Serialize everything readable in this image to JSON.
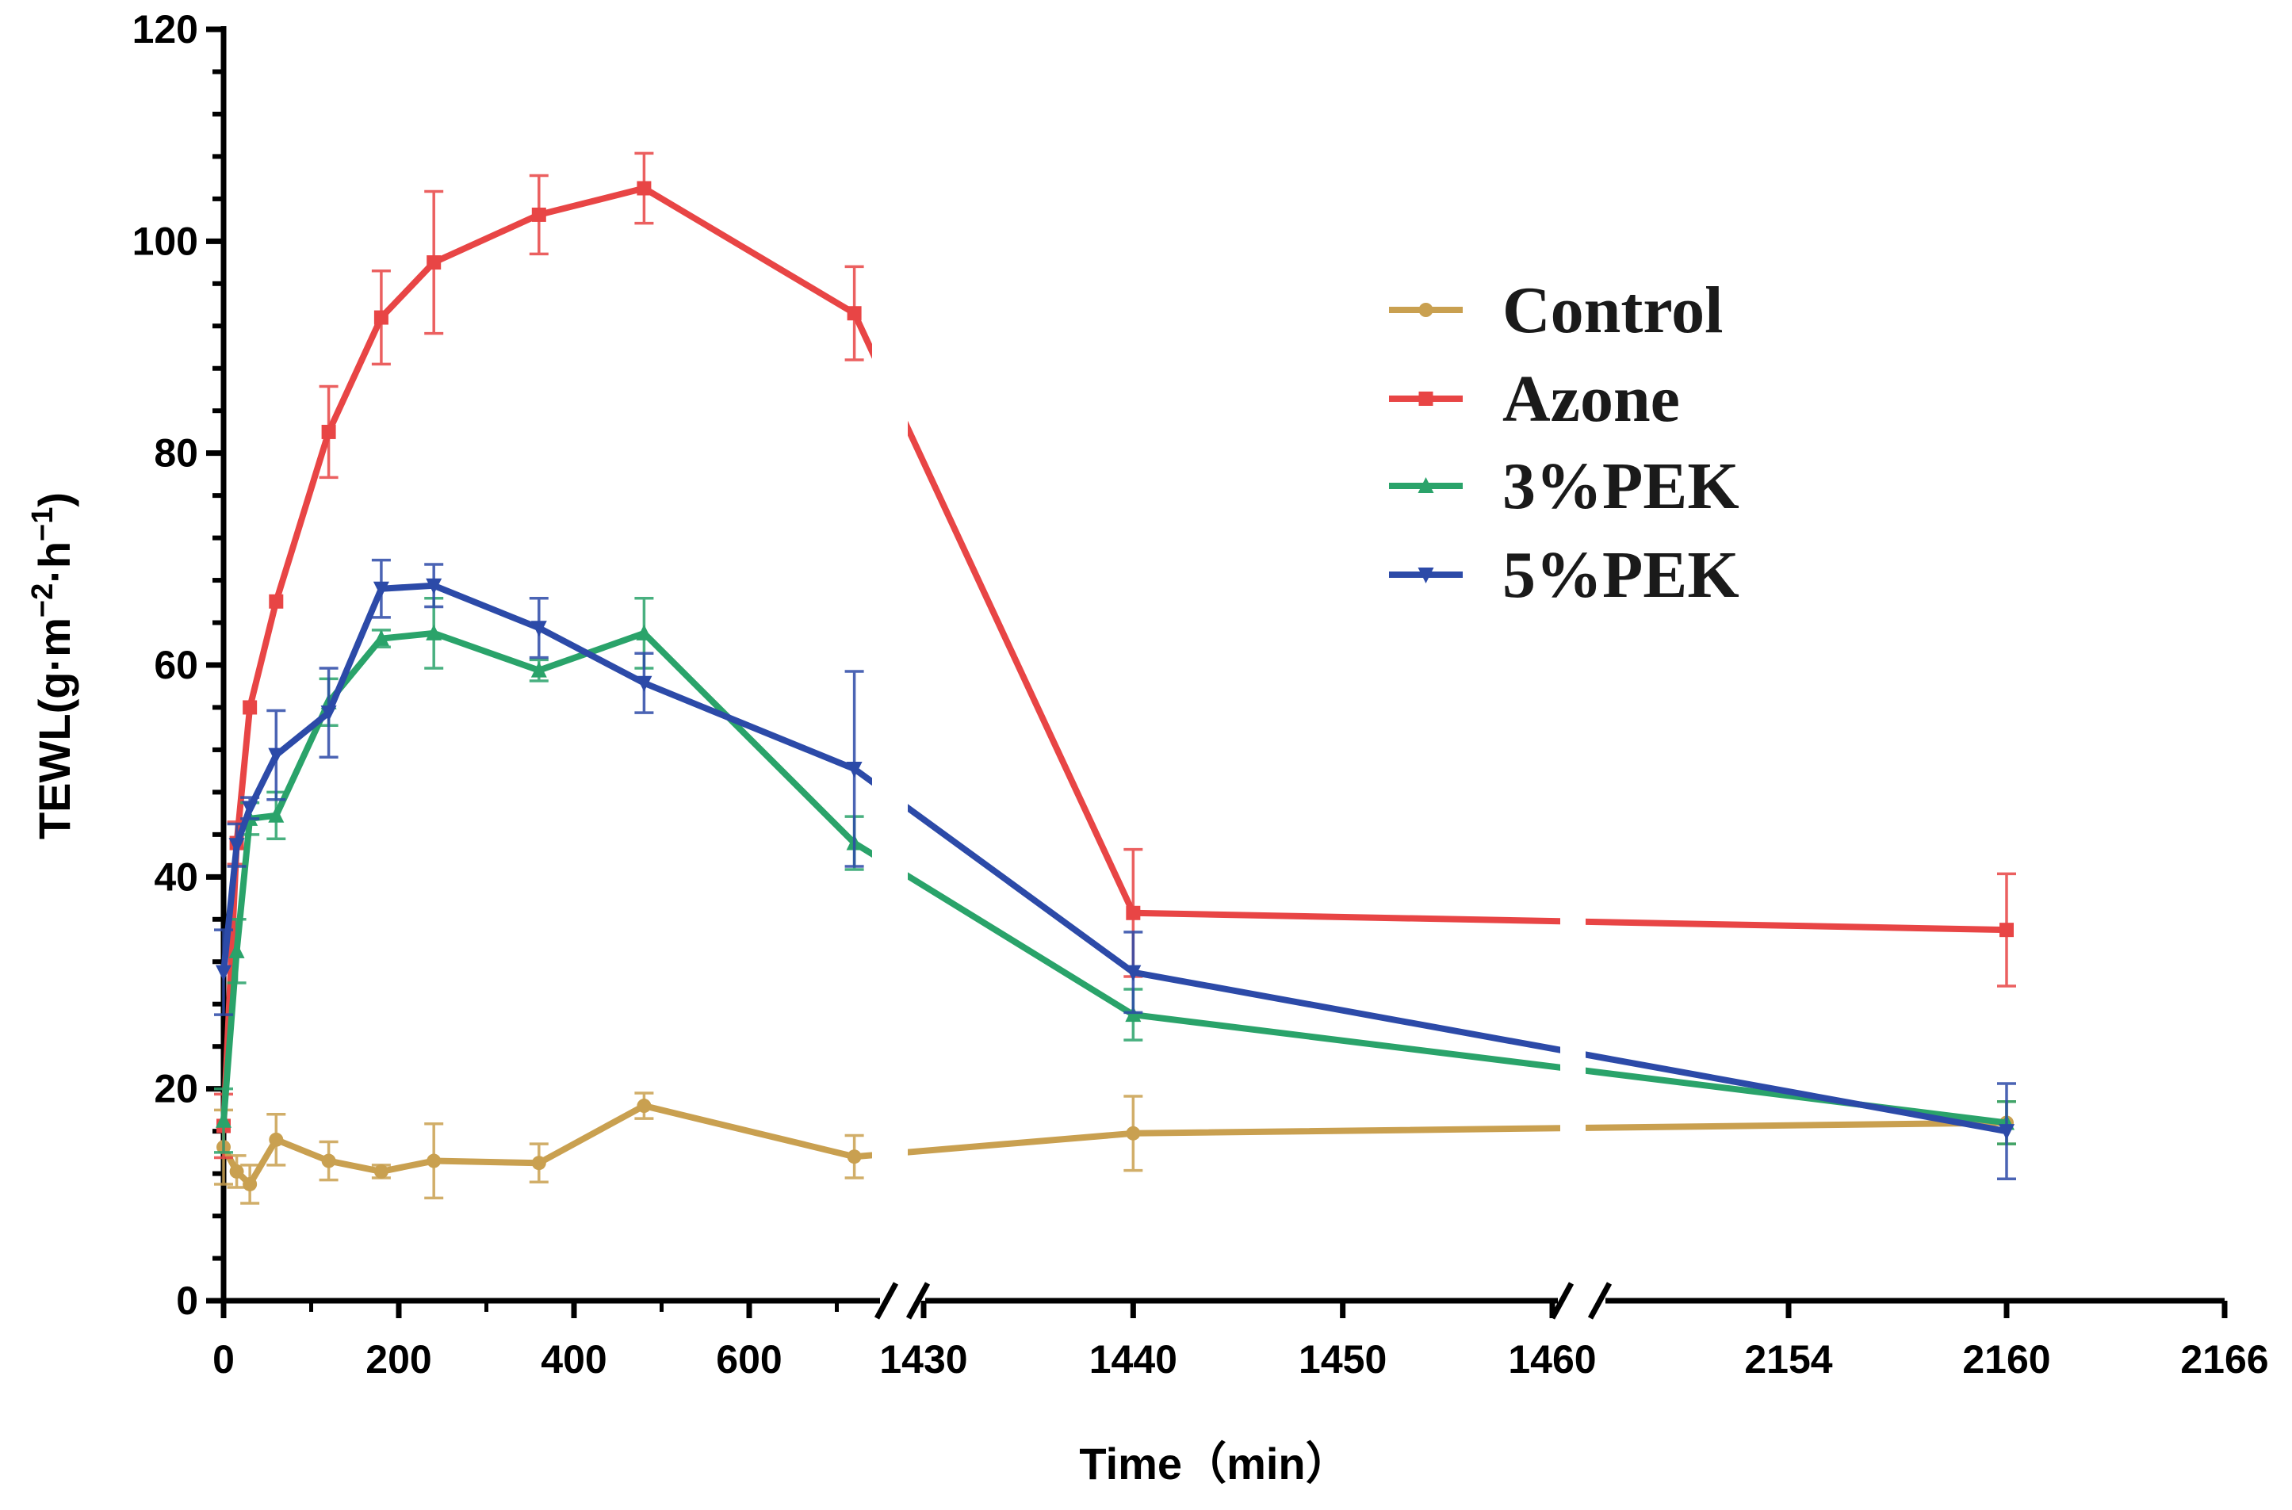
{
  "chart_data": {
    "type": "line",
    "title": "",
    "xlabel": "Time（min）",
    "ylabel": "TEWL(g·m⁻²·h⁻¹)",
    "ylabel_parts": {
      "prefix": "TEWL(g·m",
      "exp1": "−2",
      "mid": "·h",
      "exp2": "−1",
      "suffix": ")"
    },
    "ylim": [
      0,
      120
    ],
    "yticks": [
      0,
      20,
      40,
      60,
      80,
      100,
      120
    ],
    "ytick_labels": [
      "0",
      "20",
      "40",
      "60",
      "80",
      "100",
      "120"
    ],
    "x_axis_broken": true,
    "x_segments": [
      {
        "range": [
          0,
          720
        ],
        "ticks": [
          0,
          200,
          400,
          600
        ],
        "tick_labels": [
          "0",
          "200",
          "400",
          "600"
        ]
      },
      {
        "range": [
          1430,
          1460
        ],
        "ticks": [
          1430,
          1440,
          1450,
          1460
        ],
        "tick_labels": [
          "1430",
          "1440",
          "1450",
          "1460"
        ]
      },
      {
        "range": [
          2154,
          2166
        ],
        "ticks": [
          2154,
          2160,
          2166
        ],
        "tick_labels": [
          "2154",
          "2160",
          "2166"
        ]
      }
    ],
    "legend_position": "top-right",
    "grid": false,
    "x": [
      0,
      15,
      30,
      60,
      120,
      180,
      240,
      360,
      480,
      720,
      1440,
      2160
    ],
    "series": [
      {
        "name": "Control",
        "color": "#C9A050",
        "marker": "circle",
        "values": [
          14.5,
          12.2,
          11.0,
          15.2,
          13.2,
          12.2,
          13.2,
          13.0,
          18.4,
          13.6,
          15.8,
          16.8
        ],
        "errors": [
          3.5,
          1.5,
          1.8,
          2.4,
          1.8,
          0.6,
          3.5,
          1.8,
          1.2,
          2.0,
          3.5,
          2.0
        ]
      },
      {
        "name": "Azone",
        "color": "#E84545",
        "marker": "square",
        "values": [
          16.5,
          43.2,
          56.0,
          66.0,
          82.0,
          92.8,
          98.0,
          102.5,
          105.0,
          93.2,
          36.6,
          35.0
        ],
        "errors": [
          3.0,
          2.0,
          0.0,
          0.0,
          4.3,
          4.4,
          6.7,
          3.7,
          3.3,
          4.4,
          6.0,
          5.3
        ]
      },
      {
        "name": "3%PEK",
        "color": "#2AA36A",
        "marker": "triangle-up",
        "values": [
          17.0,
          33.0,
          45.5,
          45.8,
          56.5,
          62.5,
          63.0,
          59.5,
          63.0,
          43.2,
          27.0,
          16.8
        ],
        "errors": [
          3.0,
          3.0,
          1.5,
          2.2,
          2.2,
          0.8,
          3.3,
          1.0,
          3.3,
          2.5,
          2.4,
          2.0
        ]
      },
      {
        "name": "5%PEK",
        "color": "#2C4AA8",
        "marker": "triangle-down",
        "values": [
          31.0,
          43.0,
          46.5,
          51.5,
          55.5,
          67.2,
          67.5,
          63.5,
          58.3,
          50.2,
          31.0,
          16.0
        ],
        "errors": [
          4.0,
          2.0,
          1.0,
          4.2,
          4.2,
          2.7,
          2.0,
          2.8,
          2.8,
          9.2,
          3.8,
          4.5
        ]
      }
    ]
  }
}
